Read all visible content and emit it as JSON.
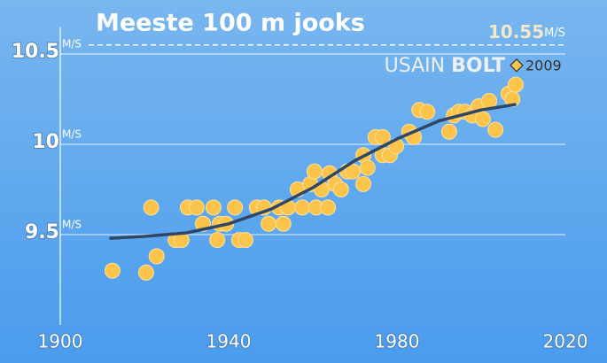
{
  "chart_data": {
    "type": "scatter",
    "title": "Meeste 100 m jooks",
    "y_unit": "M/S",
    "xlim": [
      1900,
      2020
    ],
    "ylim": [
      9.0,
      10.6
    ],
    "xticks": [
      1900,
      1940,
      1980,
      2020
    ],
    "yticks": [
      9.5,
      10,
      10.5
    ],
    "grid": true,
    "points": {
      "color": "#fcc44a",
      "x": [
        1912.4,
        1920.4,
        1922.9,
        1921.6,
        1927.4,
        1928.8,
        1930.3,
        1932.4,
        1933.9,
        1936.4,
        1937.9,
        1937.3,
        1939.4,
        1941.5,
        1942.5,
        1944.0,
        1946.7,
        1948.4,
        1949.5,
        1952.0,
        1953.0,
        1954.1,
        1956.4,
        1957.5,
        1959.4,
        1960.4,
        1960.8,
        1962.1,
        1963.6,
        1964.0,
        1965.3,
        1966.7,
        1968.2,
        1969.5,
        1972.0,
        1972.0,
        1973.0,
        1974.9,
        1976.6,
        1976.6,
        1978.3,
        1979.8,
        1982.9,
        1984.0,
        1985.3,
        1987.2,
        1992.4,
        1993.5,
        1994.7,
        1996.2,
        1997.9,
        1999.4,
        2000.4,
        2001.9,
        2003.4,
        2006.5,
        2007.4,
        2008.2
      ],
      "y": [
        9.3,
        9.29,
        9.38,
        9.65,
        9.47,
        9.47,
        9.65,
        9.65,
        9.56,
        9.65,
        9.56,
        9.47,
        9.56,
        9.65,
        9.47,
        9.47,
        9.65,
        9.65,
        9.56,
        9.65,
        9.56,
        9.65,
        9.75,
        9.65,
        9.78,
        9.85,
        9.65,
        9.75,
        9.65,
        9.84,
        9.78,
        9.75,
        9.85,
        9.85,
        9.78,
        9.94,
        9.87,
        10.04,
        10.04,
        9.94,
        9.94,
        9.99,
        10.07,
        10.04,
        10.19,
        10.18,
        10.07,
        10.16,
        10.18,
        10.18,
        10.16,
        10.21,
        10.14,
        10.24,
        10.08,
        10.28,
        10.25,
        10.33
      ]
    },
    "trend": {
      "color": "#2f4766",
      "x": [
        1912,
        1920,
        1930,
        1940,
        1950,
        1960,
        1970,
        1980,
        1990,
        2000,
        2008
      ],
      "y": [
        9.48,
        9.49,
        9.51,
        9.56,
        9.64,
        9.76,
        9.91,
        10.03,
        10.13,
        10.19,
        10.22
      ]
    },
    "annotation": {
      "value": 10.55,
      "first_name": "USAIN",
      "last_name": "BOLT",
      "year": "2009",
      "color": "#fcc44a"
    }
  }
}
